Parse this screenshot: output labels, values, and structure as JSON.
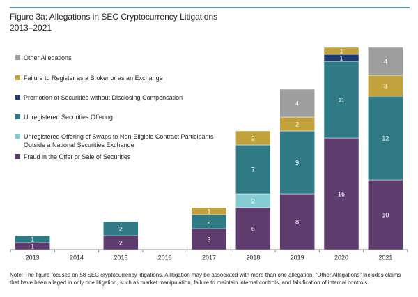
{
  "chart_data": {
    "type": "stacked_bar",
    "title": "Figure 3a: Allegations in SEC Cryptocurrency Litigations",
    "subtitle": "2013–2021",
    "categories": [
      "2013",
      "2014",
      "2015",
      "2016",
      "2017",
      "2018",
      "2019",
      "2020",
      "2021"
    ],
    "series": [
      {
        "name": "Fraud in the Offer or Sale of Securities",
        "color": "#5e3c6e",
        "values": [
          1,
          null,
          2,
          null,
          3,
          6,
          8,
          16,
          10
        ]
      },
      {
        "name": "Unregistered Offering of Swaps to Non-Eligible Contract Participants Outside a National Securities Exchange",
        "color": "#86cdd3",
        "values": [
          null,
          null,
          null,
          null,
          null,
          2,
          null,
          null,
          null
        ]
      },
      {
        "name": "Unregistered Securities Offering",
        "color": "#2f7a84",
        "values": [
          1,
          null,
          2,
          null,
          2,
          7,
          9,
          11,
          12
        ]
      },
      {
        "name": "Promotion of Securities without Disclosing Compensation",
        "color": "#1f3d73",
        "values": [
          null,
          null,
          null,
          null,
          null,
          null,
          null,
          1,
          null
        ]
      },
      {
        "name": "Failure to Register as a Broker or as an Exchange",
        "color": "#c1a23c",
        "values": [
          null,
          null,
          null,
          null,
          1,
          2,
          2,
          1,
          3
        ]
      },
      {
        "name": "Other Allegations",
        "color": "#9e9e9e",
        "values": [
          null,
          null,
          null,
          null,
          null,
          null,
          4,
          null,
          4
        ]
      }
    ],
    "ylim": [
      0,
      29
    ],
    "note": "Note: The figure focuses on 58 SEC cryptocurrency litigations. A litigation may be associated with more than one allegation. “Other Allegations” includes claims that have been alleged in only one litigation, such as market manipulation, failure to maintain internal controls, and falsification of internal controls."
  }
}
